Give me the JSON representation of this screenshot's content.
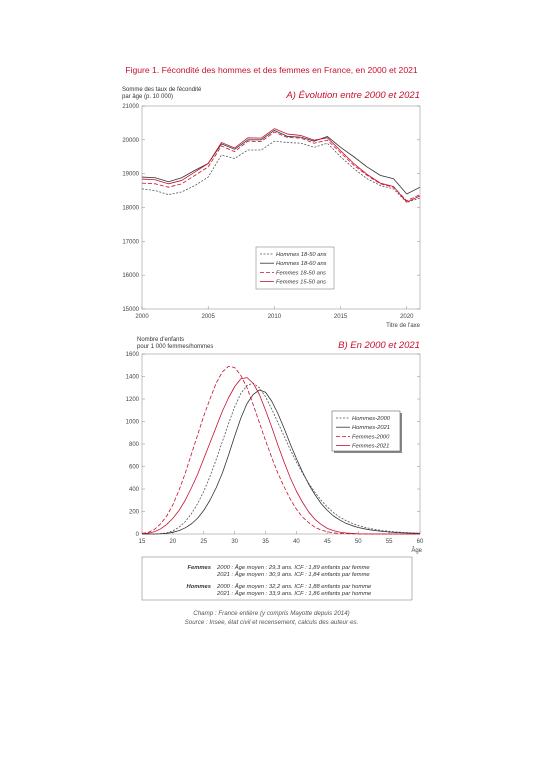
{
  "figure_title": "Figure 1. Fécondité des hommes et des femmes en France, en 2000 et 2021",
  "colors": {
    "accent": "#c8102e",
    "dark_line": "#333333",
    "axis": "#888888"
  },
  "chart_data": [
    {
      "type": "line",
      "title": "A) Évolution entre 2000 et 2021",
      "ylabel_line1": "Somme des taux de fécondité",
      "ylabel_line2": "par âge (p. 10 000)",
      "xlabel": "Titre de l'axe",
      "xlim": [
        2000,
        2021
      ],
      "ylim": [
        15000,
        21000
      ],
      "xticks": [
        2000,
        2005,
        2010,
        2015,
        2020
      ],
      "yticks": [
        15000,
        16000,
        17000,
        18000,
        19000,
        20000,
        21000
      ],
      "legend_position": "center-right",
      "x": [
        2000,
        2001,
        2002,
        2003,
        2004,
        2005,
        2006,
        2007,
        2008,
        2009,
        2010,
        2011,
        2012,
        2013,
        2014,
        2015,
        2016,
        2017,
        2018,
        2019,
        2020,
        2021
      ],
      "series": [
        {
          "name": "Hommes 18-50 ans",
          "color": "#555555",
          "dash": "2,1.5",
          "values": [
            18550,
            18500,
            18380,
            18460,
            18650,
            18900,
            19550,
            19450,
            19700,
            19700,
            19960,
            19920,
            19900,
            19780,
            19900,
            19500,
            19150,
            18850,
            18650,
            18550,
            18150,
            18280
          ]
        },
        {
          "name": "Hommes 18-60 ans",
          "color": "#333333",
          "dash": "",
          "values": [
            18900,
            18880,
            18760,
            18880,
            19100,
            19300,
            19880,
            19720,
            20000,
            20000,
            20280,
            20100,
            20080,
            19960,
            20100,
            19780,
            19500,
            19200,
            18950,
            18850,
            18400,
            18600
          ]
        },
        {
          "name": "Femmes 18-50 ans",
          "color": "#c8102e",
          "dash": "4,2",
          "values": [
            18720,
            18700,
            18600,
            18700,
            18950,
            19200,
            19820,
            19650,
            19960,
            19950,
            20230,
            20070,
            20050,
            19900,
            19990,
            19620,
            19250,
            18950,
            18700,
            18600,
            18200,
            18380
          ]
        },
        {
          "name": "Femmes 15-50 ans",
          "color": "#c8102e",
          "dash": "",
          "values": [
            18840,
            18820,
            18700,
            18800,
            19050,
            19300,
            19920,
            19760,
            20060,
            20050,
            20330,
            20170,
            20130,
            19990,
            20060,
            19680,
            19300,
            18980,
            18720,
            18620,
            18160,
            18340
          ]
        }
      ]
    },
    {
      "type": "line",
      "title": "B) En 2000 et 2021",
      "ylabel_line1": "Nombre d'enfants",
      "ylabel_line2": "pour 1 000 femmes/hommes",
      "xlabel": "Âge",
      "xlim": [
        15,
        60
      ],
      "ylim": [
        0,
        1600
      ],
      "xticks": [
        15,
        20,
        25,
        30,
        35,
        40,
        45,
        50,
        55,
        60
      ],
      "yticks": [
        0,
        200,
        400,
        600,
        800,
        1000,
        1200,
        1400,
        1600
      ],
      "legend_position": "right",
      "x": [
        15,
        16,
        17,
        18,
        19,
        20,
        21,
        22,
        23,
        24,
        25,
        26,
        27,
        28,
        29,
        30,
        31,
        32,
        33,
        34,
        35,
        36,
        37,
        38,
        39,
        40,
        41,
        42,
        43,
        44,
        45,
        46,
        47,
        48,
        49,
        50,
        51,
        52,
        53,
        54,
        55,
        56,
        57,
        58,
        59,
        60
      ],
      "series": [
        {
          "name": "Hommes-2000",
          "color": "#555555",
          "dash": "2,1.5",
          "values": [
            0,
            0,
            0,
            3,
            10,
            28,
            60,
            110,
            180,
            270,
            380,
            510,
            660,
            820,
            980,
            1130,
            1250,
            1320,
            1340,
            1300,
            1220,
            1110,
            990,
            870,
            750,
            640,
            540,
            450,
            370,
            300,
            240,
            190,
            150,
            120,
            95,
            75,
            60,
            48,
            38,
            30,
            24,
            19,
            15,
            12,
            9,
            7
          ]
        },
        {
          "name": "Hommes-2021",
          "color": "#333333",
          "dash": "",
          "values": [
            0,
            0,
            0,
            2,
            6,
            15,
            30,
            55,
            90,
            140,
            210,
            300,
            410,
            540,
            700,
            870,
            1030,
            1160,
            1240,
            1280,
            1260,
            1180,
            1070,
            940,
            800,
            670,
            550,
            440,
            350,
            270,
            210,
            160,
            125,
            95,
            75,
            58,
            46,
            36,
            29,
            23,
            18,
            14,
            11,
            9,
            7,
            5
          ]
        },
        {
          "name": "Femmes-2000",
          "color": "#c8102e",
          "dash": "4,2",
          "values": [
            5,
            15,
            40,
            90,
            160,
            260,
            390,
            540,
            710,
            880,
            1050,
            1200,
            1340,
            1440,
            1490,
            1480,
            1410,
            1300,
            1150,
            990,
            830,
            680,
            540,
            420,
            310,
            220,
            150,
            100,
            60,
            35,
            20,
            10,
            5,
            3,
            2,
            1,
            0,
            0,
            0,
            0,
            0,
            0,
            0,
            0,
            0,
            0
          ]
        },
        {
          "name": "Femmes-2021",
          "color": "#c8102e",
          "dash": "",
          "values": [
            3,
            8,
            20,
            45,
            85,
            140,
            210,
            300,
            410,
            530,
            670,
            810,
            950,
            1090,
            1210,
            1310,
            1380,
            1390,
            1340,
            1240,
            1100,
            950,
            790,
            640,
            500,
            380,
            280,
            195,
            130,
            85,
            50,
            30,
            17,
            9,
            5,
            2,
            1,
            0,
            0,
            0,
            0,
            0,
            0,
            0,
            0,
            0
          ]
        }
      ]
    }
  ],
  "summary_box": {
    "femmes_label": "Femmes",
    "femmes_2000": "2000 : Âge moyen : 29,3 ans. ICF : 1,89  enfants par femme",
    "femmes_2021": "2021 : Âge moyen : 30,9 ans. ICF : 1,84  enfants par femme",
    "hommes_label": "Hommes",
    "hommes_2000": "2000 : Âge moyen : 32,2 ans. ICF : 1,88 enfants par homme",
    "hommes_2021": "2021 : Âge moyen : 33,9 ans. ICF : 1,86 enfants par homme"
  },
  "notes": {
    "champ": "Champ : France entière (y compris Mayotte depuis 2014)",
    "source": "Source : Insee, état civil et recensement, calculs des auteur·es."
  }
}
